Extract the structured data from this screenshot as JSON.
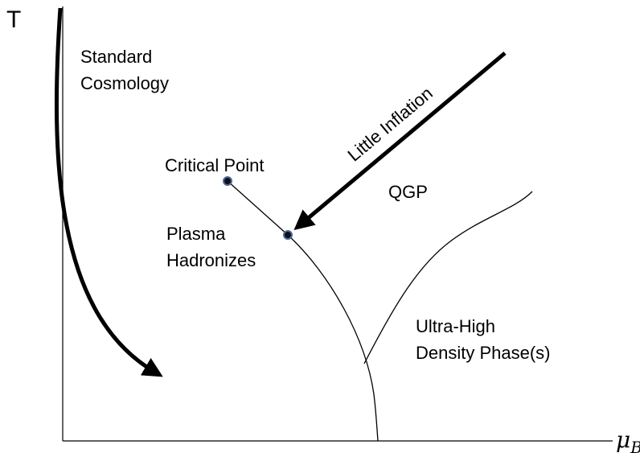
{
  "axes": {
    "y_label": "T",
    "x_label": "μ",
    "x_label_subscript": "B"
  },
  "labels": {
    "standard_cosmology": [
      "Standard",
      "Cosmology"
    ],
    "critical_point": "Critical Point",
    "plasma_hadronizes": [
      "Plasma",
      "Hadronizes"
    ],
    "little_inflation": "Little Inflation",
    "qgp": "QGP",
    "ultra_high_density": [
      "Ultra-High",
      "Density Phase(s)"
    ]
  }
}
